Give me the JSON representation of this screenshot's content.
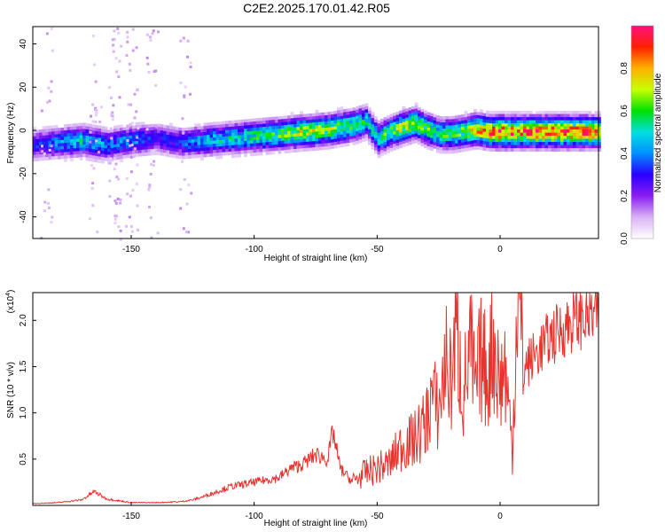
{
  "title": "C2E2.2025.170.01.42.R05",
  "colors": {
    "snr_line": "#e8332e",
    "colormap": [
      "#ffffff",
      "#d9b3f5",
      "#8a1cf0",
      "#2a00ff",
      "#0090ff",
      "#00e0e0",
      "#00e000",
      "#c8ff00",
      "#ffb000",
      "#ff2000",
      "#ff1080"
    ]
  },
  "chart_data": [
    {
      "type": "heatmap",
      "name": "spectrogram",
      "xlabel": "Height of straight line (km)",
      "ylabel": "Frequency (Hz)",
      "xlim": [
        -190,
        40
      ],
      "ylim": [
        -50,
        48
      ],
      "xticks": [
        "-150",
        "-100",
        "-50",
        "0"
      ],
      "xtick_values": [
        -150,
        -100,
        -50,
        0
      ],
      "yticks": [
        "-40",
        "-20",
        "0",
        "20",
        "40"
      ],
      "ytick_values": [
        -40,
        -20,
        0,
        20,
        40
      ],
      "colorbar": {
        "label": "Normalized spectral amplitude",
        "range": [
          0,
          1
        ],
        "ticks": [
          "0.0",
          "0.2",
          "0.4",
          "0.6",
          "0.8"
        ],
        "tick_values": [
          0,
          0.2,
          0.4,
          0.6,
          0.8
        ]
      },
      "ridge": {
        "x": [
          -190,
          -180,
          -170,
          -160,
          -150,
          -140,
          -130,
          -120,
          -110,
          -100,
          -90,
          -80,
          -70,
          -60,
          -55,
          -50,
          -45,
          -40,
          -35,
          -30,
          -25,
          -20,
          -15,
          -10,
          -5,
          0,
          10,
          20,
          30,
          40
        ],
        "freq": [
          -6,
          -5,
          -4,
          -6,
          -4,
          -3,
          -5,
          -4,
          -3,
          -2,
          -1,
          0,
          1,
          3,
          5,
          -3,
          0,
          2,
          4,
          1,
          -1,
          -1,
          0,
          1,
          0,
          0,
          0,
          0,
          0,
          0
        ],
        "amplitude": [
          0.3,
          0.4,
          0.5,
          0.4,
          0.4,
          0.3,
          0.35,
          0.45,
          0.5,
          0.55,
          0.6,
          0.7,
          0.65,
          0.6,
          0.5,
          0.55,
          0.6,
          0.7,
          0.65,
          0.6,
          0.55,
          0.6,
          0.65,
          0.75,
          0.85,
          0.9,
          0.85,
          0.9,
          0.9,
          0.8
        ]
      }
    },
    {
      "type": "line",
      "name": "snr",
      "xlabel": "Height of straight line (km)",
      "ylabel": "SNR (10 * v/v)",
      "ylabel_multiplier": "(x10",
      "ylabel_exponent": "4",
      "ylabel_multiplier_close": ")",
      "xlim": [
        -190,
        40
      ],
      "ylim": [
        0,
        23000
      ],
      "xticks": [
        "-150",
        "-100",
        "-50",
        "0"
      ],
      "xtick_values": [
        -150,
        -100,
        -50,
        0
      ],
      "yticks": [
        "0.5",
        "1.0",
        "1.5",
        "2.0"
      ],
      "ytick_values": [
        5000,
        10000,
        15000,
        20000
      ],
      "series": [
        {
          "x": [
            -190,
            -180,
            -170,
            -165,
            -160,
            -150,
            -140,
            -130,
            -125,
            -120,
            -110,
            -100,
            -90,
            -85,
            -80,
            -75,
            -70,
            -68,
            -65,
            -60,
            -55,
            -50,
            -45,
            -40,
            -35,
            -30,
            -28,
            -25,
            -22,
            -20,
            -18,
            -15,
            -12,
            -10,
            -8,
            -5,
            -3,
            0,
            2,
            5,
            7,
            10,
            15,
            20,
            25,
            30,
            35,
            40
          ],
          "y": [
            200,
            300,
            600,
            1500,
            700,
            300,
            300,
            400,
            600,
            1000,
            2000,
            2500,
            3000,
            4000,
            4500,
            5500,
            5000,
            8000,
            4000,
            2500,
            3500,
            4000,
            4500,
            6500,
            7000,
            9000,
            12000,
            10000,
            16000,
            13000,
            19000,
            12000,
            17000,
            12000,
            16000,
            14000,
            18000,
            13000,
            15000,
            6000,
            23000,
            15000,
            16500,
            18000,
            19000,
            20000,
            20500,
            20500
          ]
        }
      ]
    }
  ]
}
